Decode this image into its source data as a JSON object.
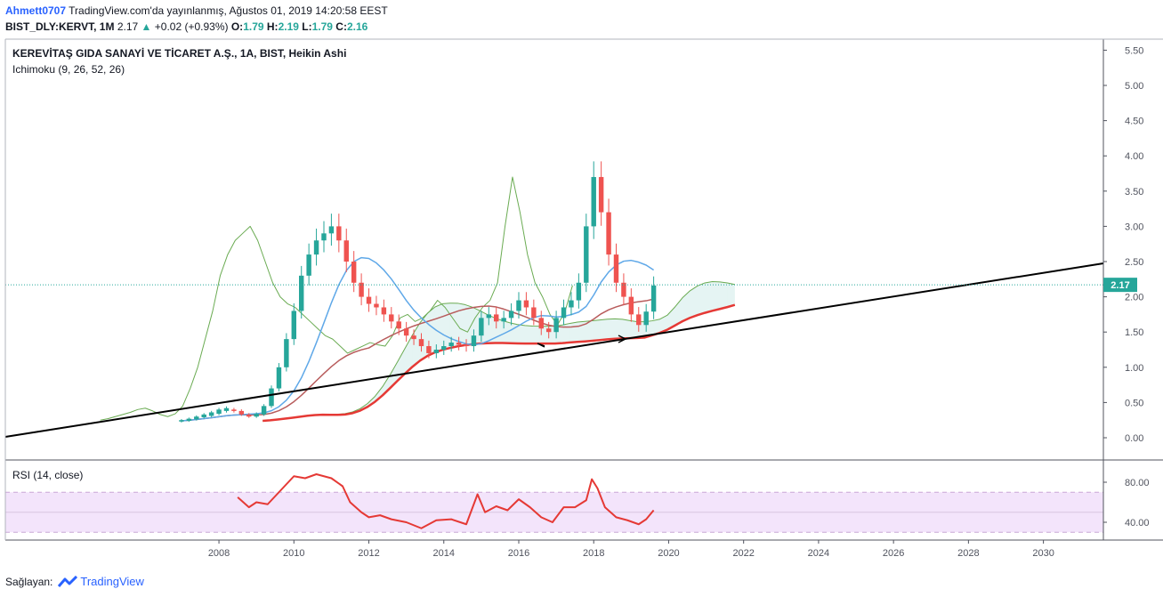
{
  "header": {
    "author": "Ahmett0707",
    "published": "TradingView.com'da yayınlanmış, Ağustos 01, 2019 14:20:58 EEST",
    "symbol": "BIST_DLY:KERVT, 1M",
    "last": "2.17",
    "change_arrow": "▲",
    "change": "+0.02 (+0.93%)",
    "o_label": "O:",
    "o_value": "1.79",
    "h_label": "H:",
    "h_value": "2.19",
    "l_label": "L:",
    "l_value": "1.79",
    "c_label": "C:",
    "c_value": "2.16"
  },
  "main_pane": {
    "title": "KEREVİTAŞ GIDA SANAYİ VE TİCARET A.Ş., 1A, BIST, Heikin Ashi",
    "indicator": "Ichimoku (9, 26, 52, 26)"
  },
  "rsi_pane": {
    "title": "RSI (14, close)"
  },
  "footer": {
    "provider_label": "Sağlayan:",
    "brand": "TradingView"
  },
  "colors": {
    "up": "#26a69a",
    "down": "#ef5350",
    "tenkan": "#5fa8e8",
    "kijun": "#b85c5c",
    "chikou": "#6aab52",
    "span_b_bold": "#e53935",
    "trendline": "#000000",
    "rsi": "#e53935",
    "rsi_band": "#f3e4fb",
    "price_tag": "#26a69a"
  },
  "chart_data": [
    {
      "type": "candlestick",
      "title": "KEREVİTAŞ GIDA SANAYİ VE TİCARET A.Ş., 1A, BIST, Heikin Ashi",
      "y_ticks": [
        "5.50",
        "5.00",
        "4.50",
        "4.00",
        "3.50",
        "3.00",
        "2.50",
        "2.00",
        "1.50",
        "1.00",
        "0.50",
        "0.00"
      ],
      "x_ticks": [
        "2008",
        "2010",
        "2012",
        "2014",
        "2016",
        "2018",
        "2020",
        "2022",
        "2024",
        "2026",
        "2028",
        "2030"
      ],
      "ylim": [
        -0.1,
        5.6
      ],
      "xlim": [
        2002.3,
        2031.6
      ],
      "last_price_tag": "2.17",
      "candles": [
        [
          2007.0,
          0.23,
          0.25
        ],
        [
          2007.2,
          0.24,
          0.27
        ],
        [
          2007.4,
          0.26,
          0.3
        ],
        [
          2007.6,
          0.29,
          0.33
        ],
        [
          2007.8,
          0.31,
          0.36
        ],
        [
          2008.0,
          0.34,
          0.4
        ],
        [
          2008.2,
          0.38,
          0.42
        ],
        [
          2008.4,
          0.4,
          0.38
        ],
        [
          2008.6,
          0.38,
          0.33
        ],
        [
          2008.8,
          0.33,
          0.3
        ],
        [
          2009.0,
          0.3,
          0.34
        ],
        [
          2009.2,
          0.33,
          0.45
        ],
        [
          2009.4,
          0.45,
          0.7
        ],
        [
          2009.6,
          0.7,
          1.0
        ],
        [
          2009.8,
          1.0,
          1.4
        ],
        [
          2010.0,
          1.4,
          1.8
        ],
        [
          2010.2,
          1.8,
          2.3
        ],
        [
          2010.4,
          2.3,
          2.6
        ],
        [
          2010.6,
          2.6,
          2.8
        ],
        [
          2010.8,
          2.8,
          2.9
        ],
        [
          2011.0,
          2.9,
          3.0
        ],
        [
          2011.2,
          3.0,
          2.8
        ],
        [
          2011.4,
          2.8,
          2.5
        ],
        [
          2011.6,
          2.5,
          2.2
        ],
        [
          2011.8,
          2.2,
          2.0
        ],
        [
          2012.0,
          2.0,
          1.9
        ],
        [
          2012.2,
          1.9,
          1.85
        ],
        [
          2012.4,
          1.85,
          1.75
        ],
        [
          2012.6,
          1.75,
          1.65
        ],
        [
          2012.8,
          1.65,
          1.55
        ],
        [
          2013.0,
          1.55,
          1.45
        ],
        [
          2013.2,
          1.45,
          1.4
        ],
        [
          2013.4,
          1.4,
          1.3
        ],
        [
          2013.6,
          1.3,
          1.2
        ],
        [
          2013.8,
          1.2,
          1.25
        ],
        [
          2014.0,
          1.25,
          1.3
        ],
        [
          2014.2,
          1.3,
          1.35
        ],
        [
          2014.4,
          1.35,
          1.32
        ],
        [
          2014.6,
          1.32,
          1.3
        ],
        [
          2014.8,
          1.3,
          1.45
        ],
        [
          2015.0,
          1.45,
          1.7
        ],
        [
          2015.2,
          1.7,
          1.75
        ],
        [
          2015.4,
          1.75,
          1.65
        ],
        [
          2015.6,
          1.65,
          1.7
        ],
        [
          2015.8,
          1.7,
          1.8
        ],
        [
          2016.0,
          1.8,
          1.95
        ],
        [
          2016.2,
          1.95,
          1.85
        ],
        [
          2016.4,
          1.85,
          1.7
        ],
        [
          2016.6,
          1.7,
          1.55
        ],
        [
          2016.8,
          1.55,
          1.5
        ],
        [
          2017.0,
          1.5,
          1.7
        ],
        [
          2017.2,
          1.7,
          1.85
        ],
        [
          2017.4,
          1.85,
          1.95
        ],
        [
          2017.6,
          1.95,
          2.2
        ],
        [
          2017.8,
          2.2,
          3.0
        ],
        [
          2018.0,
          3.0,
          3.7
        ],
        [
          2018.2,
          3.7,
          3.2
        ],
        [
          2018.4,
          3.2,
          2.6
        ],
        [
          2018.6,
          2.6,
          2.2
        ],
        [
          2018.8,
          2.2,
          2.0
        ],
        [
          2019.0,
          2.0,
          1.75
        ],
        [
          2019.2,
          1.75,
          1.6
        ],
        [
          2019.4,
          1.6,
          1.79
        ],
        [
          2019.6,
          1.79,
          2.16
        ]
      ]
    },
    {
      "type": "line",
      "title": "RSI (14, close)",
      "y_ticks": [
        "80.00",
        "40.00"
      ],
      "ylim": [
        20,
        100
      ],
      "band": [
        30,
        70
      ],
      "x": [
        2008.5,
        2008.8,
        2009.0,
        2009.3,
        2009.6,
        2010.0,
        2010.3,
        2010.6,
        2011.0,
        2011.3,
        2011.5,
        2011.8,
        2012.0,
        2012.3,
        2012.6,
        2013.0,
        2013.4,
        2013.8,
        2014.2,
        2014.6,
        2014.9,
        2015.1,
        2015.4,
        2015.7,
        2016.0,
        2016.3,
        2016.6,
        2016.9,
        2017.2,
        2017.5,
        2017.8,
        2017.95,
        2018.1,
        2018.3,
        2018.6,
        2018.9,
        2019.2,
        2019.4,
        2019.6
      ],
      "values": [
        65,
        55,
        60,
        58,
        70,
        86,
        84,
        88,
        84,
        76,
        60,
        50,
        45,
        47,
        43,
        40,
        34,
        42,
        43,
        38,
        68,
        50,
        56,
        52,
        63,
        55,
        45,
        40,
        55,
        55,
        62,
        83,
        74,
        55,
        45,
        42,
        38,
        43,
        52
      ]
    }
  ]
}
